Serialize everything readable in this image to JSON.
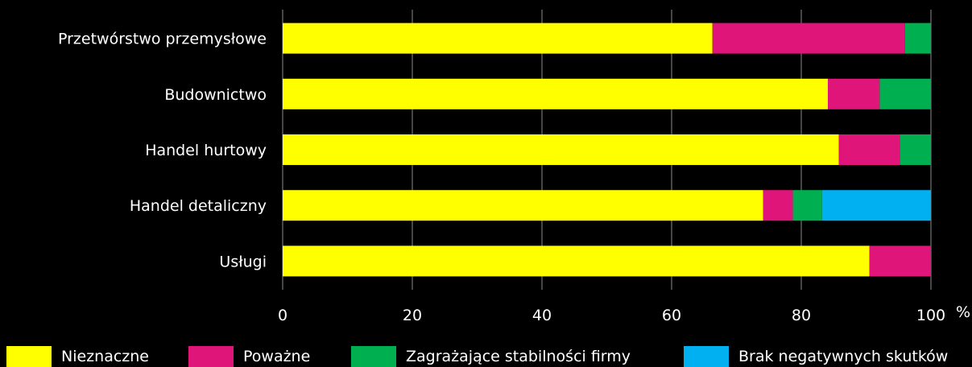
{
  "chart_data": {
    "type": "bar",
    "orientation": "horizontal",
    "stacked": true,
    "categories": [
      "Przetwórstwo przemysłowe",
      "Budownictwo",
      "Handel hurtowy",
      "Handel detaliczny",
      "Usługi"
    ],
    "series": [
      {
        "name": "Nieznaczne",
        "color": "#ffff00",
        "values": [
          66.3,
          84.1,
          85.8,
          74.1,
          90.5
        ]
      },
      {
        "name": "Poważne",
        "color": "#e0157a",
        "values": [
          29.7,
          8.0,
          9.4,
          4.6,
          9.5
        ]
      },
      {
        "name": "Zagrażające stabilności firmy",
        "color": "#00b050",
        "values": [
          4.0,
          7.9,
          4.8,
          4.5,
          0
        ]
      },
      {
        "name": "Brak negatywnych skutków",
        "color": "#00b0f0",
        "values": [
          0,
          0,
          0,
          16.8,
          0
        ]
      }
    ],
    "xlim": [
      0,
      100
    ],
    "xticks": [
      0,
      20,
      40,
      60,
      80,
      100
    ],
    "unit": "%",
    "grid": true,
    "legend_position": "bottom"
  }
}
